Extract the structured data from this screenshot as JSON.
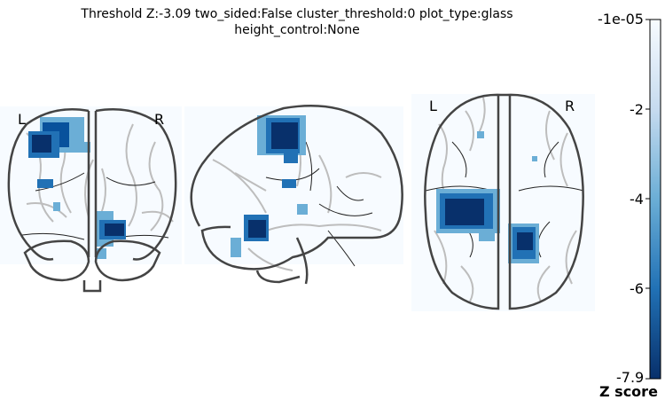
{
  "title_line1": "Threshold Z:-3.09  two_sided:False  cluster_threshold:0  plot_type:glass",
  "title_line2": "height_control:None",
  "views": {
    "coronal": {
      "left": "L",
      "right": "R"
    },
    "axial": {
      "left": "L",
      "right": "R"
    }
  },
  "colorbar": {
    "ticks": [
      "-1e-05",
      "-2",
      "-4",
      "-6",
      "-7.9"
    ],
    "label": "Z score",
    "colors": [
      "#08306b",
      "#2171b5",
      "#6baed6",
      "#c6dbef",
      "#f7fbff"
    ]
  }
}
